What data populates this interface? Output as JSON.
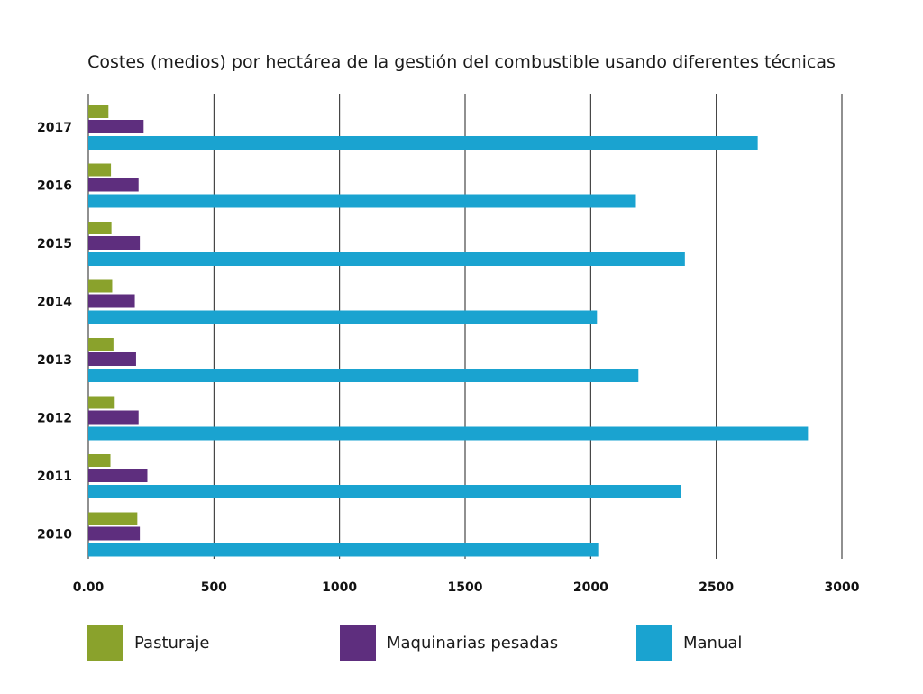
{
  "chart_data": {
    "type": "bar",
    "orientation": "horizontal",
    "title": "Costes (medios) por hectárea de la gestión del combustible usando diferentes técnicas",
    "xlabel": "",
    "ylabel": "",
    "xlim": [
      0,
      3000
    ],
    "x_ticks": [
      "0.00",
      "500",
      "1000",
      "1500",
      "2000",
      "2500",
      "3000"
    ],
    "x_tick_values": [
      0,
      500,
      1000,
      1500,
      2000,
      2500,
      3000
    ],
    "grid": "vertical",
    "legend_position": "bottom",
    "categories": [
      "2017",
      "2016",
      "2015",
      "2014",
      "2013",
      "2012",
      "2011",
      "2010"
    ],
    "series": [
      {
        "name": "Pasturaje",
        "color": "#8aa22c",
        "values": [
          80,
          90,
          92,
          95,
          100,
          105,
          88,
          195
        ]
      },
      {
        "name": "Maquinarias pesadas",
        "color": "#5e2e7e",
        "values": [
          220,
          200,
          205,
          185,
          190,
          200,
          235,
          205
        ]
      },
      {
        "name": "Manual",
        "color": "#1aa3d0",
        "values": [
          2665,
          2180,
          2375,
          2025,
          2190,
          2865,
          2360,
          2030
        ]
      }
    ]
  }
}
